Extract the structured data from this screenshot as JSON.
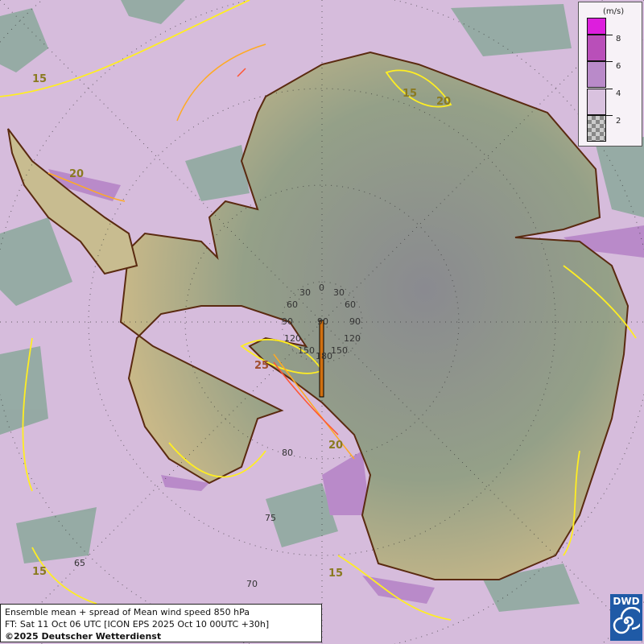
{
  "caption": {
    "line1": "Ensemble mean + spread of Mean wind speed 850 hPa",
    "line2": "FT: Sat 11 Oct 06 UTC [ICON EPS 2025 Oct 10 00UTC +30h]",
    "line3": "©2025 Deutscher Wetterdienst"
  },
  "legend": {
    "unit": "(m/s)",
    "ticks": [
      "8",
      "6",
      "4",
      "2"
    ],
    "colors": [
      "#dd1edd",
      "#b94fb9",
      "#b98ac9",
      "#d9c2df",
      "checker"
    ]
  },
  "logo": {
    "text": "DWD"
  },
  "contour_labels": [
    "15",
    "20",
    "15",
    "20",
    "25",
    "20",
    "15",
    "15"
  ],
  "latitude_labels": [
    "80",
    "75",
    "70",
    "65"
  ],
  "longitude_labels": [
    "0",
    "30",
    "30",
    "60",
    "60",
    "90",
    "90",
    "90",
    "120",
    "120",
    "150",
    "150",
    "180"
  ],
  "colors": {
    "ocean_spread_low": "#d6bcdc",
    "ocean_spread_min": "#8fa89e",
    "isotach_15": "#ffee22",
    "isotach_20": "#ffaa22",
    "isotach_25": "#ff5533",
    "coastline": "#5a2a10"
  }
}
